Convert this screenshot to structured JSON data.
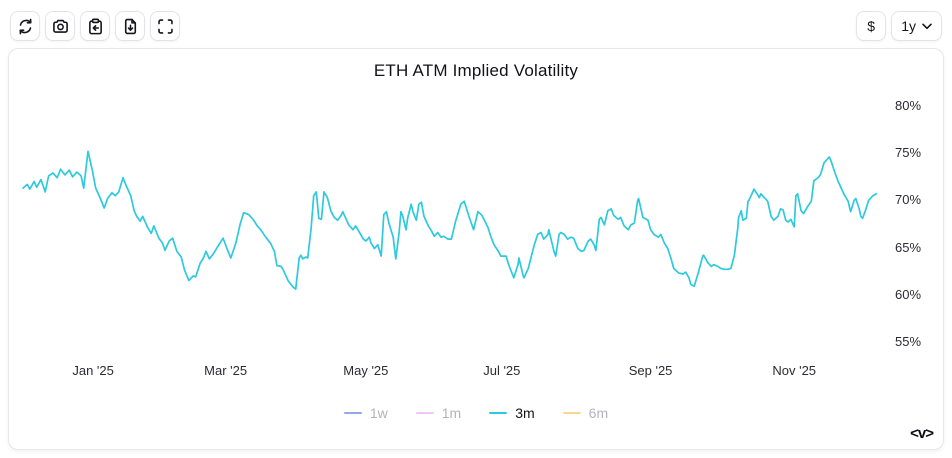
{
  "toolbar": {
    "buttons": [
      {
        "name": "refresh",
        "icon": "refresh-icon"
      },
      {
        "name": "screenshot",
        "icon": "camera-icon"
      },
      {
        "name": "copy-to-clipboard",
        "icon": "clipboard-import-icon"
      },
      {
        "name": "download-data",
        "icon": "file-download-icon"
      },
      {
        "name": "fullscreen",
        "icon": "fullscreen-icon"
      }
    ],
    "currency_label": "$",
    "range_selector": {
      "value": "1y",
      "icon": "chevron-down-icon"
    }
  },
  "branding": {
    "logo_text": "<v>"
  },
  "colors": {
    "accent_line": "#2dc9dd",
    "legend_1w": "#93a7ea",
    "legend_1m": "#eec6f7",
    "legend_6m": "#f9d691",
    "card_border": "#e7e7ea",
    "text_primary": "#15151a",
    "text_muted": "#b4b4bc"
  },
  "chart_data": {
    "type": "line",
    "title": "ETH ATM Implied Volatility",
    "grid": false,
    "x_axis": {
      "tick_labels": [
        "Jan '25",
        "Mar '25",
        "May '25",
        "Jul '25",
        "Sep '25",
        "Nov '25"
      ],
      "tick_positions": [
        0.082,
        0.237,
        0.401,
        0.56,
        0.734,
        0.902
      ],
      "range": "1y"
    },
    "y_axis": {
      "tick_labels": [
        "80%",
        "75%",
        "70%",
        "65%",
        "60%",
        "55%"
      ],
      "min": 55,
      "max": 80,
      "unit": "%",
      "side": "right"
    },
    "legend": {
      "position": "bottom",
      "entries": [
        {
          "label": "1w",
          "color": "#93a7ea",
          "active": false
        },
        {
          "label": "1m",
          "color": "#eec6f7",
          "active": false
        },
        {
          "label": "3m",
          "color": "#2dc9dd",
          "active": true
        },
        {
          "label": "6m",
          "color": "#f9d691",
          "active": false
        }
      ]
    },
    "series": [
      {
        "name": "3m",
        "color": "#2dc9dd",
        "unit": "%",
        "points": [
          [
            0.0,
            71.3
          ],
          [
            0.005,
            71.7
          ],
          [
            0.008,
            71.2
          ],
          [
            0.013,
            72.0
          ],
          [
            0.016,
            71.4
          ],
          [
            0.021,
            72.2
          ],
          [
            0.026,
            70.9
          ],
          [
            0.03,
            72.6
          ],
          [
            0.035,
            72.9
          ],
          [
            0.04,
            72.4
          ],
          [
            0.044,
            73.3
          ],
          [
            0.049,
            72.7
          ],
          [
            0.054,
            73.2
          ],
          [
            0.058,
            72.5
          ],
          [
            0.063,
            73.0
          ],
          [
            0.068,
            72.6
          ],
          [
            0.071,
            71.3
          ],
          [
            0.076,
            75.2
          ],
          [
            0.081,
            73.2
          ],
          [
            0.085,
            71.3
          ],
          [
            0.09,
            70.3
          ],
          [
            0.095,
            69.2
          ],
          [
            0.099,
            70.2
          ],
          [
            0.104,
            70.8
          ],
          [
            0.108,
            70.5
          ],
          [
            0.112,
            70.9
          ],
          [
            0.117,
            72.4
          ],
          [
            0.12,
            71.7
          ],
          [
            0.126,
            70.5
          ],
          [
            0.13,
            68.9
          ],
          [
            0.133,
            68.3
          ],
          [
            0.137,
            67.8
          ],
          [
            0.14,
            68.3
          ],
          [
            0.146,
            67.1
          ],
          [
            0.15,
            66.5
          ],
          [
            0.153,
            67.3
          ],
          [
            0.159,
            66.0
          ],
          [
            0.163,
            65.5
          ],
          [
            0.166,
            64.7
          ],
          [
            0.171,
            65.7
          ],
          [
            0.175,
            66.0
          ],
          [
            0.18,
            64.6
          ],
          [
            0.185,
            64.0
          ],
          [
            0.189,
            62.6
          ],
          [
            0.194,
            61.5
          ],
          [
            0.199,
            62.0
          ],
          [
            0.202,
            61.9
          ],
          [
            0.207,
            63.3
          ],
          [
            0.211,
            63.9
          ],
          [
            0.214,
            64.6
          ],
          [
            0.218,
            63.8
          ],
          [
            0.223,
            64.4
          ],
          [
            0.229,
            65.3
          ],
          [
            0.234,
            66.0
          ],
          [
            0.239,
            64.8
          ],
          [
            0.243,
            63.9
          ],
          [
            0.249,
            65.5
          ],
          [
            0.254,
            67.5
          ],
          [
            0.258,
            68.7
          ],
          [
            0.264,
            68.5
          ],
          [
            0.269,
            68.0
          ],
          [
            0.274,
            67.3
          ],
          [
            0.278,
            66.9
          ],
          [
            0.284,
            66.1
          ],
          [
            0.29,
            65.4
          ],
          [
            0.294,
            64.6
          ],
          [
            0.297,
            63.1
          ],
          [
            0.302,
            63.0
          ],
          [
            0.304,
            62.7
          ],
          [
            0.31,
            61.5
          ],
          [
            0.316,
            60.8
          ],
          [
            0.319,
            60.6
          ],
          [
            0.323,
            63.9
          ],
          [
            0.325,
            64.2
          ],
          [
            0.327,
            63.8
          ],
          [
            0.331,
            64.0
          ],
          [
            0.333,
            63.9
          ],
          [
            0.337,
            67.0
          ],
          [
            0.34,
            70.5
          ],
          [
            0.343,
            70.9
          ],
          [
            0.346,
            68.1
          ],
          [
            0.349,
            68.0
          ],
          [
            0.352,
            70.9
          ],
          [
            0.356,
            70.3
          ],
          [
            0.36,
            68.9
          ],
          [
            0.364,
            68.2
          ],
          [
            0.368,
            67.9
          ],
          [
            0.372,
            68.4
          ],
          [
            0.374,
            68.8
          ],
          [
            0.378,
            68.0
          ],
          [
            0.381,
            67.4
          ],
          [
            0.386,
            66.9
          ],
          [
            0.389,
            67.3
          ],
          [
            0.393,
            66.7
          ],
          [
            0.398,
            65.9
          ],
          [
            0.401,
            65.7
          ],
          [
            0.405,
            66.1
          ],
          [
            0.407,
            65.5
          ],
          [
            0.411,
            64.9
          ],
          [
            0.415,
            65.3
          ],
          [
            0.419,
            64.1
          ],
          [
            0.422,
            68.5
          ],
          [
            0.425,
            68.8
          ],
          [
            0.428,
            67.6
          ],
          [
            0.433,
            66.1
          ],
          [
            0.436,
            63.8
          ],
          [
            0.44,
            66.7
          ],
          [
            0.442,
            68.8
          ],
          [
            0.444,
            68.4
          ],
          [
            0.448,
            66.9
          ],
          [
            0.45,
            68.2
          ],
          [
            0.454,
            69.6
          ],
          [
            0.456,
            68.8
          ],
          [
            0.46,
            67.9
          ],
          [
            0.463,
            69.6
          ],
          [
            0.466,
            69.8
          ],
          [
            0.469,
            68.3
          ],
          [
            0.474,
            67.3
          ],
          [
            0.477,
            66.9
          ],
          [
            0.481,
            66.2
          ],
          [
            0.485,
            66.6
          ],
          [
            0.489,
            66.1
          ],
          [
            0.492,
            66.2
          ],
          [
            0.497,
            65.9
          ],
          [
            0.501,
            65.9
          ],
          [
            0.506,
            67.8
          ],
          [
            0.512,
            69.6
          ],
          [
            0.516,
            69.9
          ],
          [
            0.522,
            68.2
          ],
          [
            0.527,
            66.9
          ],
          [
            0.532,
            68.8
          ],
          [
            0.536,
            68.5
          ],
          [
            0.538,
            68.2
          ],
          [
            0.544,
            67.1
          ],
          [
            0.547,
            66.2
          ],
          [
            0.551,
            65.3
          ],
          [
            0.556,
            64.6
          ],
          [
            0.559,
            64.1
          ],
          [
            0.565,
            64.1
          ],
          [
            0.568,
            63.2
          ],
          [
            0.574,
            61.8
          ],
          [
            0.579,
            63.2
          ],
          [
            0.58,
            63.9
          ],
          [
            0.585,
            62.0
          ],
          [
            0.586,
            61.8
          ],
          [
            0.591,
            62.8
          ],
          [
            0.594,
            63.9
          ],
          [
            0.598,
            65.3
          ],
          [
            0.602,
            66.4
          ],
          [
            0.606,
            66.6
          ],
          [
            0.609,
            65.9
          ],
          [
            0.614,
            66.4
          ],
          [
            0.615,
            66.9
          ],
          [
            0.621,
            64.6
          ],
          [
            0.623,
            64.1
          ],
          [
            0.627,
            66.4
          ],
          [
            0.629,
            66.6
          ],
          [
            0.633,
            66.4
          ],
          [
            0.637,
            65.9
          ],
          [
            0.641,
            66.1
          ],
          [
            0.644,
            66.0
          ],
          [
            0.649,
            64.9
          ],
          [
            0.653,
            64.6
          ],
          [
            0.656,
            64.7
          ],
          [
            0.661,
            65.7
          ],
          [
            0.664,
            65.9
          ],
          [
            0.668,
            65.3
          ],
          [
            0.67,
            64.7
          ],
          [
            0.674,
            68.0
          ],
          [
            0.676,
            68.2
          ],
          [
            0.68,
            67.4
          ],
          [
            0.684,
            68.9
          ],
          [
            0.688,
            69.1
          ],
          [
            0.691,
            68.4
          ],
          [
            0.696,
            68.0
          ],
          [
            0.699,
            68.2
          ],
          [
            0.703,
            67.3
          ],
          [
            0.708,
            66.9
          ],
          [
            0.711,
            67.4
          ],
          [
            0.715,
            67.6
          ],
          [
            0.719,
            70.0
          ],
          [
            0.72,
            70.2
          ],
          [
            0.725,
            68.2
          ],
          [
            0.729,
            68.0
          ],
          [
            0.731,
            67.9
          ],
          [
            0.734,
            66.9
          ],
          [
            0.738,
            66.4
          ],
          [
            0.743,
            66.1
          ],
          [
            0.746,
            66.4
          ],
          [
            0.75,
            65.5
          ],
          [
            0.754,
            64.9
          ],
          [
            0.758,
            63.8
          ],
          [
            0.761,
            62.8
          ],
          [
            0.767,
            62.3
          ],
          [
            0.772,
            62.2
          ],
          [
            0.775,
            62.4
          ],
          [
            0.779,
            61.8
          ],
          [
            0.781,
            61.1
          ],
          [
            0.785,
            60.9
          ],
          [
            0.79,
            62.4
          ],
          [
            0.795,
            64.1
          ],
          [
            0.796,
            64.2
          ],
          [
            0.801,
            63.4
          ],
          [
            0.805,
            63.0
          ],
          [
            0.808,
            63.2
          ],
          [
            0.813,
            63.0
          ],
          [
            0.816,
            62.8
          ],
          [
            0.82,
            62.7
          ],
          [
            0.824,
            62.7
          ],
          [
            0.828,
            62.8
          ],
          [
            0.832,
            64.2
          ],
          [
            0.836,
            67.1
          ],
          [
            0.837,
            68.2
          ],
          [
            0.84,
            68.9
          ],
          [
            0.842,
            67.9
          ],
          [
            0.846,
            68.1
          ],
          [
            0.848,
            69.9
          ],
          [
            0.849,
            70.0
          ],
          [
            0.854,
            71.0
          ],
          [
            0.855,
            71.2
          ],
          [
            0.86,
            70.5
          ],
          [
            0.861,
            70.3
          ],
          [
            0.863,
            70.7
          ],
          [
            0.867,
            70.3
          ],
          [
            0.871,
            69.9
          ],
          [
            0.875,
            68.3
          ],
          [
            0.878,
            67.9
          ],
          [
            0.883,
            68.3
          ],
          [
            0.886,
            69.1
          ],
          [
            0.889,
            69.0
          ],
          [
            0.892,
            67.9
          ],
          [
            0.895,
            67.7
          ],
          [
            0.898,
            68.0
          ],
          [
            0.902,
            67.2
          ],
          [
            0.904,
            70.5
          ],
          [
            0.906,
            70.7
          ],
          [
            0.91,
            68.9
          ],
          [
            0.913,
            68.6
          ],
          [
            0.918,
            69.4
          ],
          [
            0.922,
            69.9
          ],
          [
            0.925,
            72.1
          ],
          [
            0.927,
            72.2
          ],
          [
            0.931,
            72.5
          ],
          [
            0.933,
            72.8
          ],
          [
            0.937,
            74.0
          ],
          [
            0.941,
            74.4
          ],
          [
            0.943,
            74.6
          ],
          [
            0.945,
            74.2
          ],
          [
            0.949,
            73.1
          ],
          [
            0.953,
            72.1
          ],
          [
            0.957,
            71.3
          ],
          [
            0.96,
            70.7
          ],
          [
            0.965,
            69.9
          ],
          [
            0.968,
            68.8
          ],
          [
            0.972,
            70.0
          ],
          [
            0.974,
            70.2
          ],
          [
            0.978,
            69.1
          ],
          [
            0.98,
            68.3
          ],
          [
            0.982,
            68.1
          ],
          [
            0.986,
            69.1
          ],
          [
            0.989,
            70.0
          ],
          [
            0.994,
            70.5
          ],
          [
            0.998,
            70.7
          ]
        ]
      }
    ]
  }
}
